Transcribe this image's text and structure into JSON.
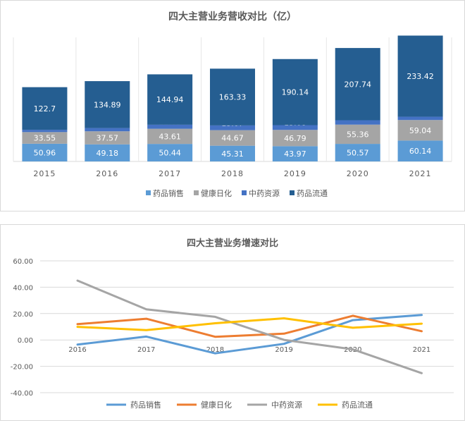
{
  "chart_data": [
    {
      "type": "bar",
      "stacked": true,
      "title": "四大主营业务营收对比（亿）",
      "categories": [
        "2015",
        "2016",
        "2017",
        "2018",
        "2019",
        "2020",
        "2021"
      ],
      "series": [
        {
          "name": "药品销售",
          "color": "#5b9bd5",
          "values": [
            50.96,
            49.18,
            50.44,
            45.31,
            43.97,
            50.57,
            60.14
          ]
        },
        {
          "name": "健康日化",
          "color": "#a5a5a5",
          "values": [
            33.55,
            37.57,
            43.61,
            44.67,
            46.79,
            55.36,
            59.04
          ]
        },
        {
          "name": "中药资源",
          "color": "#4472c4",
          "values": [
            6.51,
            9.44,
            11.63,
            13.67,
            13.68,
            12.71,
            9.51
          ]
        },
        {
          "name": "药品流通",
          "color": "#255e91",
          "values": [
            122.7,
            134.89,
            144.94,
            163.33,
            190.14,
            207.74,
            233.42
          ]
        }
      ],
      "legend_position": "bottom"
    },
    {
      "type": "line",
      "title": "四大主营业务增速对比",
      "categories": [
        "2016",
        "2017",
        "2018",
        "2019",
        "2020",
        "2021"
      ],
      "ylim": [
        -40,
        60
      ],
      "yticks": [
        "60.00",
        "40.00",
        "20.00",
        "0.00",
        "-20.00",
        "-40.00"
      ],
      "series": [
        {
          "name": "药品销售",
          "color": "#5b9bd5",
          "values": [
            -3.49,
            2.56,
            -10.17,
            -2.96,
            15.01,
            18.93
          ]
        },
        {
          "name": "健康日化",
          "color": "#ed7d31",
          "values": [
            11.98,
            16.08,
            2.43,
            4.75,
            18.32,
            6.65
          ]
        },
        {
          "name": "中药资源",
          "color": "#a5a5a5",
          "values": [
            45.01,
            23.2,
            17.54,
            0.07,
            -7.09,
            -25.18
          ]
        },
        {
          "name": "药品流通",
          "color": "#ffc000",
          "values": [
            9.94,
            7.45,
            12.69,
            16.41,
            9.26,
            12.36
          ]
        }
      ],
      "legend_position": "bottom"
    }
  ]
}
